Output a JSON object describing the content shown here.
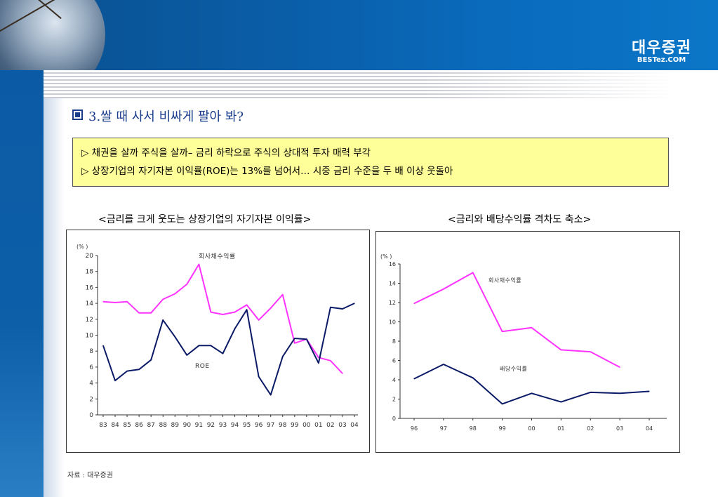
{
  "brand": {
    "name_kr": "대우증권",
    "name_en": "BESTez.COM"
  },
  "section_title": "3.쌀 때 사서 비싸게 팔아 봐?",
  "notes": [
    "▷  채권을 살까 주식을 살까– 금리 하락으로 주식의 상대적 투자 매력 부각",
    "▷ 상장기업의 자기자본 이익률(ROE)는 13%를 넘어서… 시중 금리 수준을 두 배 이상 웃돌아"
  ],
  "source_note": "자료 : 대우증권",
  "colors": {
    "corporate_bond": "#ff33ff",
    "second_series": "#0a1a66",
    "note_bg": "#ffff99"
  },
  "chart_data": [
    {
      "type": "line",
      "title": "<금리를 크게 웃도는 상장기업의 자기자본 이익률>",
      "unit_label": "(% )",
      "x": [
        "83",
        "84",
        "85",
        "86",
        "87",
        "88",
        "89",
        "90",
        "91",
        "92",
        "93",
        "94",
        "95",
        "96",
        "97",
        "98",
        "99",
        "00",
        "01",
        "02",
        "03",
        "04"
      ],
      "ylim": [
        0,
        20
      ],
      "yticks": [
        0,
        2,
        4,
        6,
        8,
        10,
        12,
        14,
        16,
        18,
        20
      ],
      "series": [
        {
          "name": "회사채수익률",
          "color": "#ff33ff",
          "values": [
            14.2,
            14.1,
            14.2,
            12.8,
            12.8,
            14.5,
            15.2,
            16.4,
            18.9,
            12.9,
            12.6,
            12.9,
            13.8,
            11.9,
            13.4,
            15.1,
            9.0,
            9.5,
            7.2,
            6.8,
            5.2,
            null
          ]
        },
        {
          "name": "ROE",
          "color": "#0a1a66",
          "values": [
            8.7,
            4.3,
            5.5,
            5.7,
            6.9,
            11.9,
            9.8,
            7.5,
            8.7,
            8.7,
            7.7,
            10.8,
            13.2,
            4.8,
            2.5,
            7.3,
            9.6,
            9.5,
            6.5,
            13.5,
            13.3,
            14.0
          ]
        }
      ]
    },
    {
      "type": "line",
      "title": "<금리와 배당수익률 격차도 축소>",
      "unit_label": "(% )",
      "x": [
        "96",
        "97",
        "98",
        "99",
        "00",
        "01",
        "02",
        "03",
        "04"
      ],
      "ylim": [
        0,
        16
      ],
      "yticks": [
        0,
        2,
        4,
        6,
        8,
        10,
        12,
        14,
        16
      ],
      "series": [
        {
          "name": "회사채수익률",
          "color": "#ff33ff",
          "values": [
            11.9,
            13.4,
            15.1,
            9.0,
            9.4,
            7.1,
            6.9,
            5.3,
            null
          ]
        },
        {
          "name": "배당수익률",
          "color": "#0a1a66",
          "values": [
            4.1,
            5.6,
            4.2,
            1.5,
            2.6,
            1.7,
            2.7,
            2.6,
            2.8
          ]
        }
      ]
    }
  ]
}
